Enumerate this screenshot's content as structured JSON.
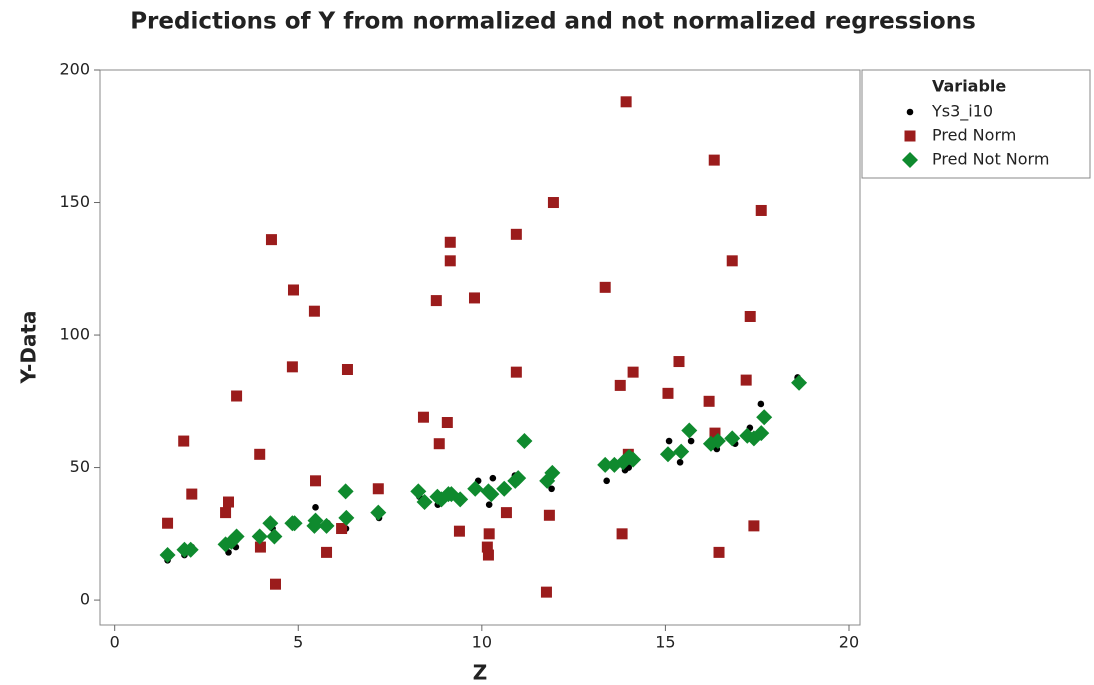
{
  "chart_data": {
    "type": "scatter",
    "title": "Predictions of Y from normalized and not normalized regressions",
    "x_label": "Z",
    "y_label": "Y-Data",
    "legend_title": "Variable",
    "legend_position": "right",
    "xlim": [
      -0.4,
      20.3
    ],
    "ylim": [
      -9.4,
      200
    ],
    "xticks": [
      0,
      5,
      10,
      15,
      20
    ],
    "yticks": [
      0,
      50,
      100,
      150,
      200
    ],
    "series": [
      {
        "name": "Ys3_i10",
        "color": "#000000",
        "marker": "circle",
        "x": [
          1.44,
          1.9,
          2.1,
          3.1,
          3.3,
          3.95,
          4.3,
          4.9,
          5.47,
          5.8,
          6.3,
          7.2,
          8.3,
          8.8,
          9.1,
          9.9,
          10.2,
          10.3,
          10.9,
          11.9,
          13.4,
          13.9,
          14.0,
          15.1,
          15.4,
          15.7,
          16.3,
          16.4,
          16.9,
          17.3,
          17.6,
          18.6
        ],
        "values": [
          15,
          17,
          20,
          18,
          20,
          21,
          27,
          30,
          35,
          29,
          27,
          31,
          39,
          36,
          41,
          45,
          36,
          46,
          47,
          42,
          45,
          49,
          50,
          60,
          52,
          60,
          58,
          57,
          59,
          65,
          74,
          84
        ]
      },
      {
        "name": "Pred Norm",
        "color": "#9b1c1c",
        "marker": "square",
        "x": [
          1.44,
          1.88,
          2.1,
          3.02,
          3.1,
          3.32,
          3.95,
          3.97,
          4.27,
          4.38,
          4.87,
          4.84,
          5.44,
          5.47,
          5.77,
          6.18,
          6.34,
          7.18,
          8.41,
          8.76,
          8.84,
          9.06,
          9.14,
          9.14,
          9.39,
          9.8,
          10.15,
          10.2,
          10.18,
          10.67,
          10.94,
          10.94,
          11.76,
          11.84,
          11.95,
          13.36,
          13.77,
          13.82,
          13.93,
          13.99,
          14.12,
          15.07,
          15.37,
          16.19,
          16.33,
          16.35,
          16.46,
          16.82,
          17.2,
          17.31,
          17.41,
          17.61
        ],
        "values": [
          29,
          60,
          40,
          33,
          37,
          77,
          55,
          20,
          136,
          6,
          117,
          88,
          109,
          45,
          18,
          27,
          87,
          42,
          69,
          113,
          59,
          67,
          135,
          128,
          26,
          114,
          20,
          25,
          17,
          33,
          138,
          86,
          3,
          32,
          150,
          118,
          81,
          25,
          188,
          55,
          86,
          78,
          90,
          75,
          166,
          63,
          18,
          128,
          83,
          107,
          28,
          147
        ]
      },
      {
        "name": "Pred Not Norm",
        "color": "#0f8a2e",
        "marker": "diamond",
        "x": [
          1.44,
          1.9,
          2.07,
          3.02,
          3.18,
          3.32,
          3.95,
          4.24,
          4.35,
          4.84,
          4.9,
          5.47,
          5.44,
          5.77,
          6.29,
          6.31,
          7.18,
          8.27,
          8.44,
          8.79,
          8.9,
          9.09,
          9.17,
          9.41,
          9.82,
          10.18,
          10.26,
          10.61,
          10.91,
          10.99,
          11.16,
          11.78,
          11.92,
          13.36,
          13.61,
          13.85,
          14.01,
          14.12,
          15.07,
          15.43,
          15.65,
          16.24,
          16.43,
          16.82,
          17.23,
          17.41,
          17.61,
          17.69,
          18.64
        ],
        "values": [
          17,
          19,
          19,
          21,
          22,
          24,
          24,
          29,
          24,
          29,
          29,
          30,
          28,
          28,
          41,
          31,
          33,
          41,
          37,
          39,
          38,
          40,
          40,
          38,
          42,
          41,
          40,
          42,
          45,
          46,
          60,
          45,
          48,
          51,
          51,
          52,
          54,
          53,
          55,
          56,
          64,
          59,
          60,
          61,
          62,
          61,
          63,
          69,
          82
        ]
      }
    ]
  }
}
